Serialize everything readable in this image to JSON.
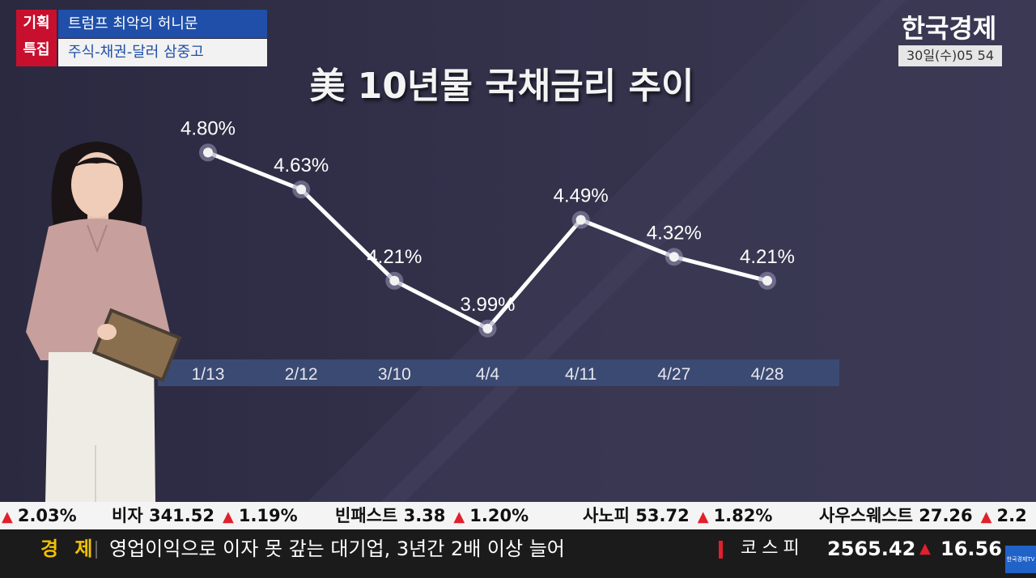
{
  "badge": {
    "line1": "기획",
    "line2": "특집"
  },
  "topic": {
    "title": "트럼프 최악의 허니문",
    "subtitle": "주식-채권-달러 삼중고"
  },
  "broadcaster": {
    "logo": "한국경제",
    "datetime": "30일(수)05 54"
  },
  "chart_data": {
    "type": "line",
    "title": "美 10년물 국채금리 추이",
    "categories": [
      "1/13",
      "2/12",
      "3/10",
      "4/4",
      "4/11",
      "4/27",
      "4/28"
    ],
    "values": [
      4.8,
      4.63,
      4.21,
      3.99,
      4.49,
      4.32,
      4.21
    ],
    "value_labels": [
      "4.80%",
      "4.63%",
      "4.21%",
      "3.99%",
      "4.49%",
      "4.32%",
      "4.21%"
    ],
    "ylim": [
      3.9,
      4.85
    ],
    "grid": false,
    "colors": {
      "line": "#ffffff",
      "marker_fill": "#f2f2f2",
      "marker_halo": "#9a98b8",
      "axis_band": "#3b4a72"
    }
  },
  "ticker": [
    {
      "name": "",
      "price": "",
      "change": "2.03%"
    },
    {
      "name": "비자",
      "price": "341.52",
      "change": "1.19%"
    },
    {
      "name": "빈패스트",
      "price": "3.38",
      "change": "1.20%"
    },
    {
      "name": "사노피",
      "price": "53.72",
      "change": "1.82%"
    },
    {
      "name": "사우스웨스트",
      "price": "27.26",
      "change": "2.2"
    }
  ],
  "news": {
    "category": "경 제",
    "headline": "영업이익으로 이자 못 갚는 대기업, 3년간 2배 이상 늘어",
    "index_label": "코스피",
    "index_value": "2565.42",
    "index_change": "16.56",
    "up_symbol": "▲",
    "tv_logo": "한국경제TV"
  }
}
